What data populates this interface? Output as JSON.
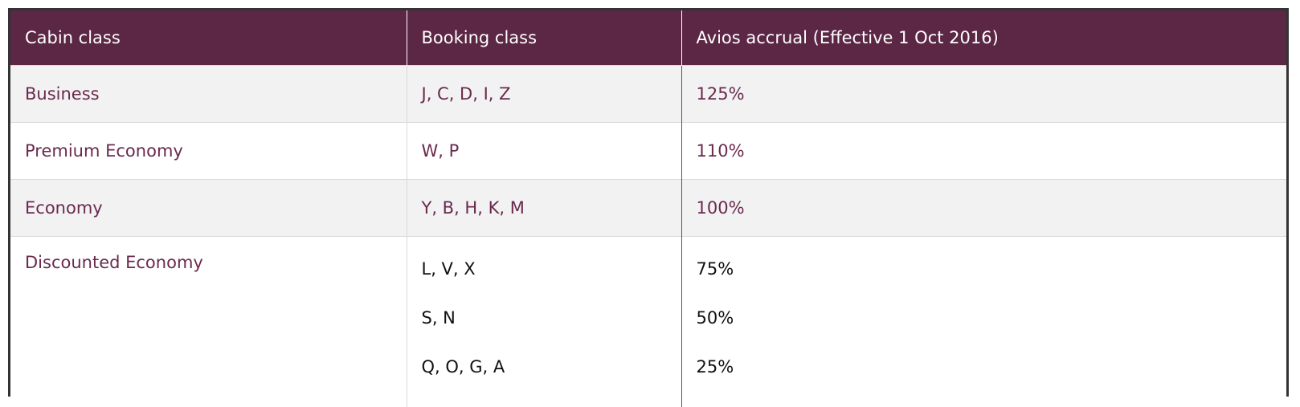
{
  "headers": {
    "cabin": "Cabin class",
    "booking": "Booking class",
    "accrual": "Avios accrual (Effective 1 Oct 2016)"
  },
  "rows": [
    {
      "cabin": "Business",
      "booking": "J, C, D, I, Z",
      "accrual": "125%"
    },
    {
      "cabin": "Premium Economy",
      "booking": "W, P",
      "accrual": "110%"
    },
    {
      "cabin": "Economy",
      "booking": "Y, B, H, K, M",
      "accrual": "100%"
    },
    {
      "cabin": "Discounted Economy",
      "subrows": [
        {
          "booking": "L, V, X",
          "accrual": "75%"
        },
        {
          "booking": "S, N",
          "accrual": "50%"
        },
        {
          "booking": "Q, O, G, A",
          "accrual": "25%"
        }
      ]
    }
  ],
  "colors": {
    "header_bg": "#5c2645",
    "header_text": "#ffffff",
    "row_text": "#6a2a4e",
    "shaded_row_bg": "#f2f2f2",
    "plain_row_bg": "#ffffff",
    "subrow_text": "#111111"
  }
}
